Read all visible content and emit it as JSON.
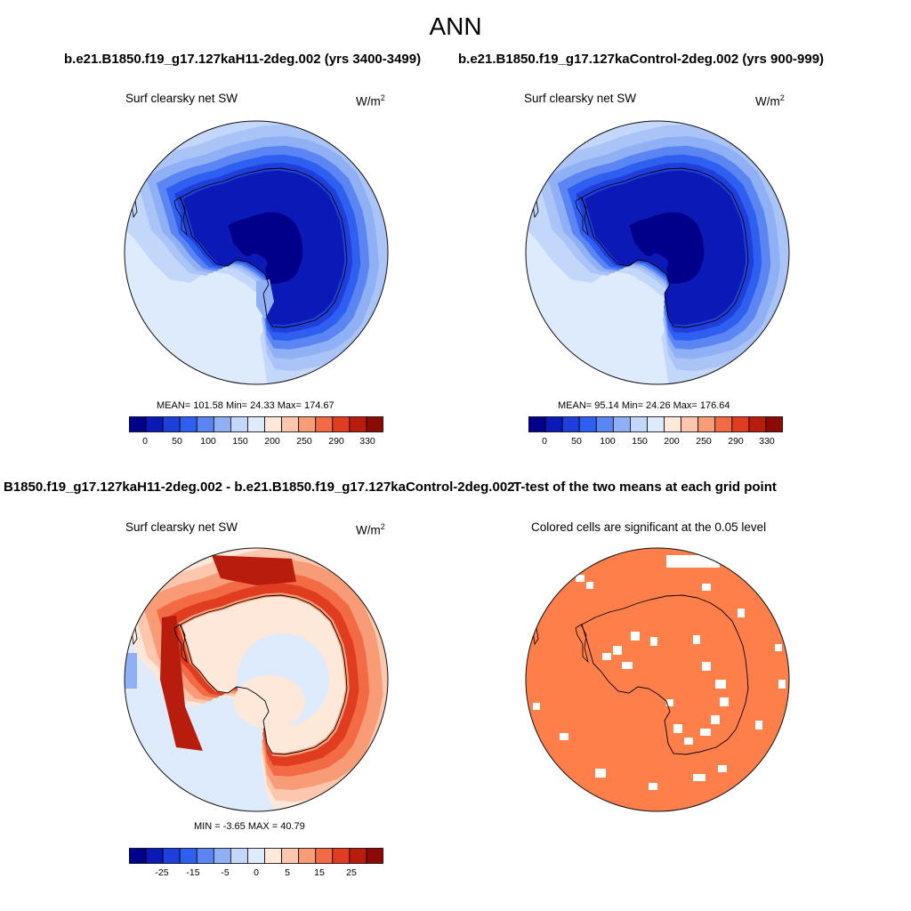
{
  "figure": {
    "title": "ANN",
    "case_a": "b.e21.B1850.f19_g17.127kaH11-2deg.002 (yrs 3400-3499)",
    "case_b": "b.e21.B1850.f19_g17.127kaControl-2deg.002 (yrs 900-999)",
    "diff_title": "B1850.f19_g17.127kaH11-2deg.002 - b.e21.B1850.f19_g17.127kaControl-2deg.002",
    "ttest_title": "T-test of the two means at each grid point"
  },
  "panels": {
    "a": {
      "variable": "Surf clearsky net SW",
      "units_base": "W/m",
      "units_exp": "2",
      "stats": "MEAN= 101.58  Min=  24.33  Max= 174.67"
    },
    "b": {
      "variable": "Surf clearsky net SW",
      "units_base": "W/m",
      "units_exp": "2",
      "stats": "MEAN= 95.14  Min=  24.26  Max= 176.64"
    },
    "c": {
      "variable": "Surf clearsky net SW",
      "units_base": "W/m",
      "units_exp": "2",
      "stats": "MIN =  -3.65 MAX =  40.79"
    },
    "d": {
      "note": "Colored cells are significant at the 0.05 level",
      "significant_color": "#ff7f4a"
    }
  },
  "chart_data": [
    {
      "type": "heatmap",
      "projection": "south polar stereographic",
      "title": "Surf clearsky net SW",
      "units": "W/m2",
      "mean": 101.58,
      "min": 24.33,
      "max": 174.67,
      "contour_bands_outer_to_inner": [
        160,
        150,
        140,
        120,
        100,
        75,
        50,
        25
      ],
      "colorbar": {
        "tick_labels": [
          "0",
          "50",
          "100",
          "150",
          "200",
          "250",
          "290",
          "330"
        ],
        "colors": [
          "#00008b",
          "#0b19b6",
          "#1f3fdc",
          "#2f5ff0",
          "#5a85f2",
          "#8fb0f5",
          "#c3d7fa",
          "#ddebfd",
          "#fde8da",
          "#fcc7ad",
          "#f89c78",
          "#f26b45",
          "#e03c1f",
          "#b81c0c",
          "#8b0a03"
        ]
      }
    },
    {
      "type": "heatmap",
      "projection": "south polar stereographic",
      "title": "Surf clearsky net SW",
      "units": "W/m2",
      "mean": 95.14,
      "min": 24.26,
      "max": 176.64,
      "contour_bands_outer_to_inner": [
        160,
        150,
        140,
        120,
        100,
        75,
        50,
        25
      ],
      "colorbar": {
        "tick_labels": [
          "0",
          "50",
          "100",
          "150",
          "200",
          "250",
          "290",
          "330"
        ],
        "colors": [
          "#00008b",
          "#0b19b6",
          "#1f3fdc",
          "#2f5ff0",
          "#5a85f2",
          "#8fb0f5",
          "#c3d7fa",
          "#ddebfd",
          "#fde8da",
          "#fcc7ad",
          "#f89c78",
          "#f26b45",
          "#e03c1f",
          "#b81c0c",
          "#8b0a03"
        ]
      }
    },
    {
      "type": "heatmap",
      "projection": "south polar stereographic",
      "title": "Surf clearsky net SW",
      "units": "W/m2",
      "min": -3.65,
      "max": 40.79,
      "colorbar": {
        "tick_labels": [
          "-25",
          "-15",
          "-5",
          "0",
          "5",
          "15",
          "25"
        ],
        "colors": [
          "#00008b",
          "#0b19b6",
          "#1f3fdc",
          "#2f5ff0",
          "#5a85f2",
          "#8fb0f5",
          "#c3d7fa",
          "#ddebfd",
          "#fde8da",
          "#fcc7ad",
          "#f89c78",
          "#f26b45",
          "#e03c1f",
          "#b81c0c",
          "#8b0a03"
        ]
      }
    },
    {
      "type": "heatmap",
      "projection": "south polar stereographic",
      "title": "T-test of the two means at each grid point",
      "note": "Colored cells are significant at the 0.05 level"
    }
  ]
}
